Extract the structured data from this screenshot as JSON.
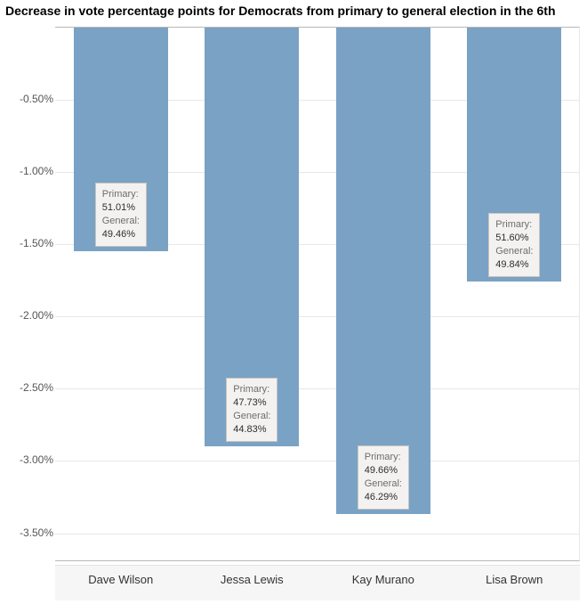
{
  "chart": {
    "type": "bar",
    "title": "Decrease in vote percentage points for Democrats from primary to general election in the 6th",
    "title_fontsize": 14,
    "title_fontweight": 700,
    "background_color": "#ffffff",
    "plot_border_color": "#b8b8b8",
    "grid_color": "#e8e8e8",
    "bar_color": "#7aa2c4",
    "label_row_bg": "#f7f6f6",
    "callout_bg": "#f4f2f0",
    "callout_border": "#c8c5c1",
    "ylim": [
      -3.7,
      0
    ],
    "ytick_step": 0.5,
    "y_tick_format_suffix": "%",
    "y_tick_decimals": 2,
    "categories": [
      "Dave Wilson",
      "Jessa Lewis",
      "Kay Murano",
      "Lisa Brown"
    ],
    "values": [
      -1.55,
      -2.9,
      -3.37,
      -1.76
    ],
    "callouts": [
      {
        "primary_label": "Primary:",
        "primary_value": "51.01%",
        "general_label": "General:",
        "general_value": "49.46%"
      },
      {
        "primary_label": "Primary:",
        "primary_value": "47.73%",
        "general_label": "General:",
        "general_value": "44.83%"
      },
      {
        "primary_label": "Primary:",
        "primary_value": "49.66%",
        "general_label": "General:",
        "general_value": "46.29%"
      },
      {
        "primary_label": "Primary:",
        "primary_value": "51.60%",
        "general_label": "General:",
        "general_value": "49.84%"
      }
    ],
    "tick_fontsize": 12,
    "xlabel_fontsize": 13,
    "callout_fontsize": 11,
    "bar_width_ratio": 0.72
  }
}
